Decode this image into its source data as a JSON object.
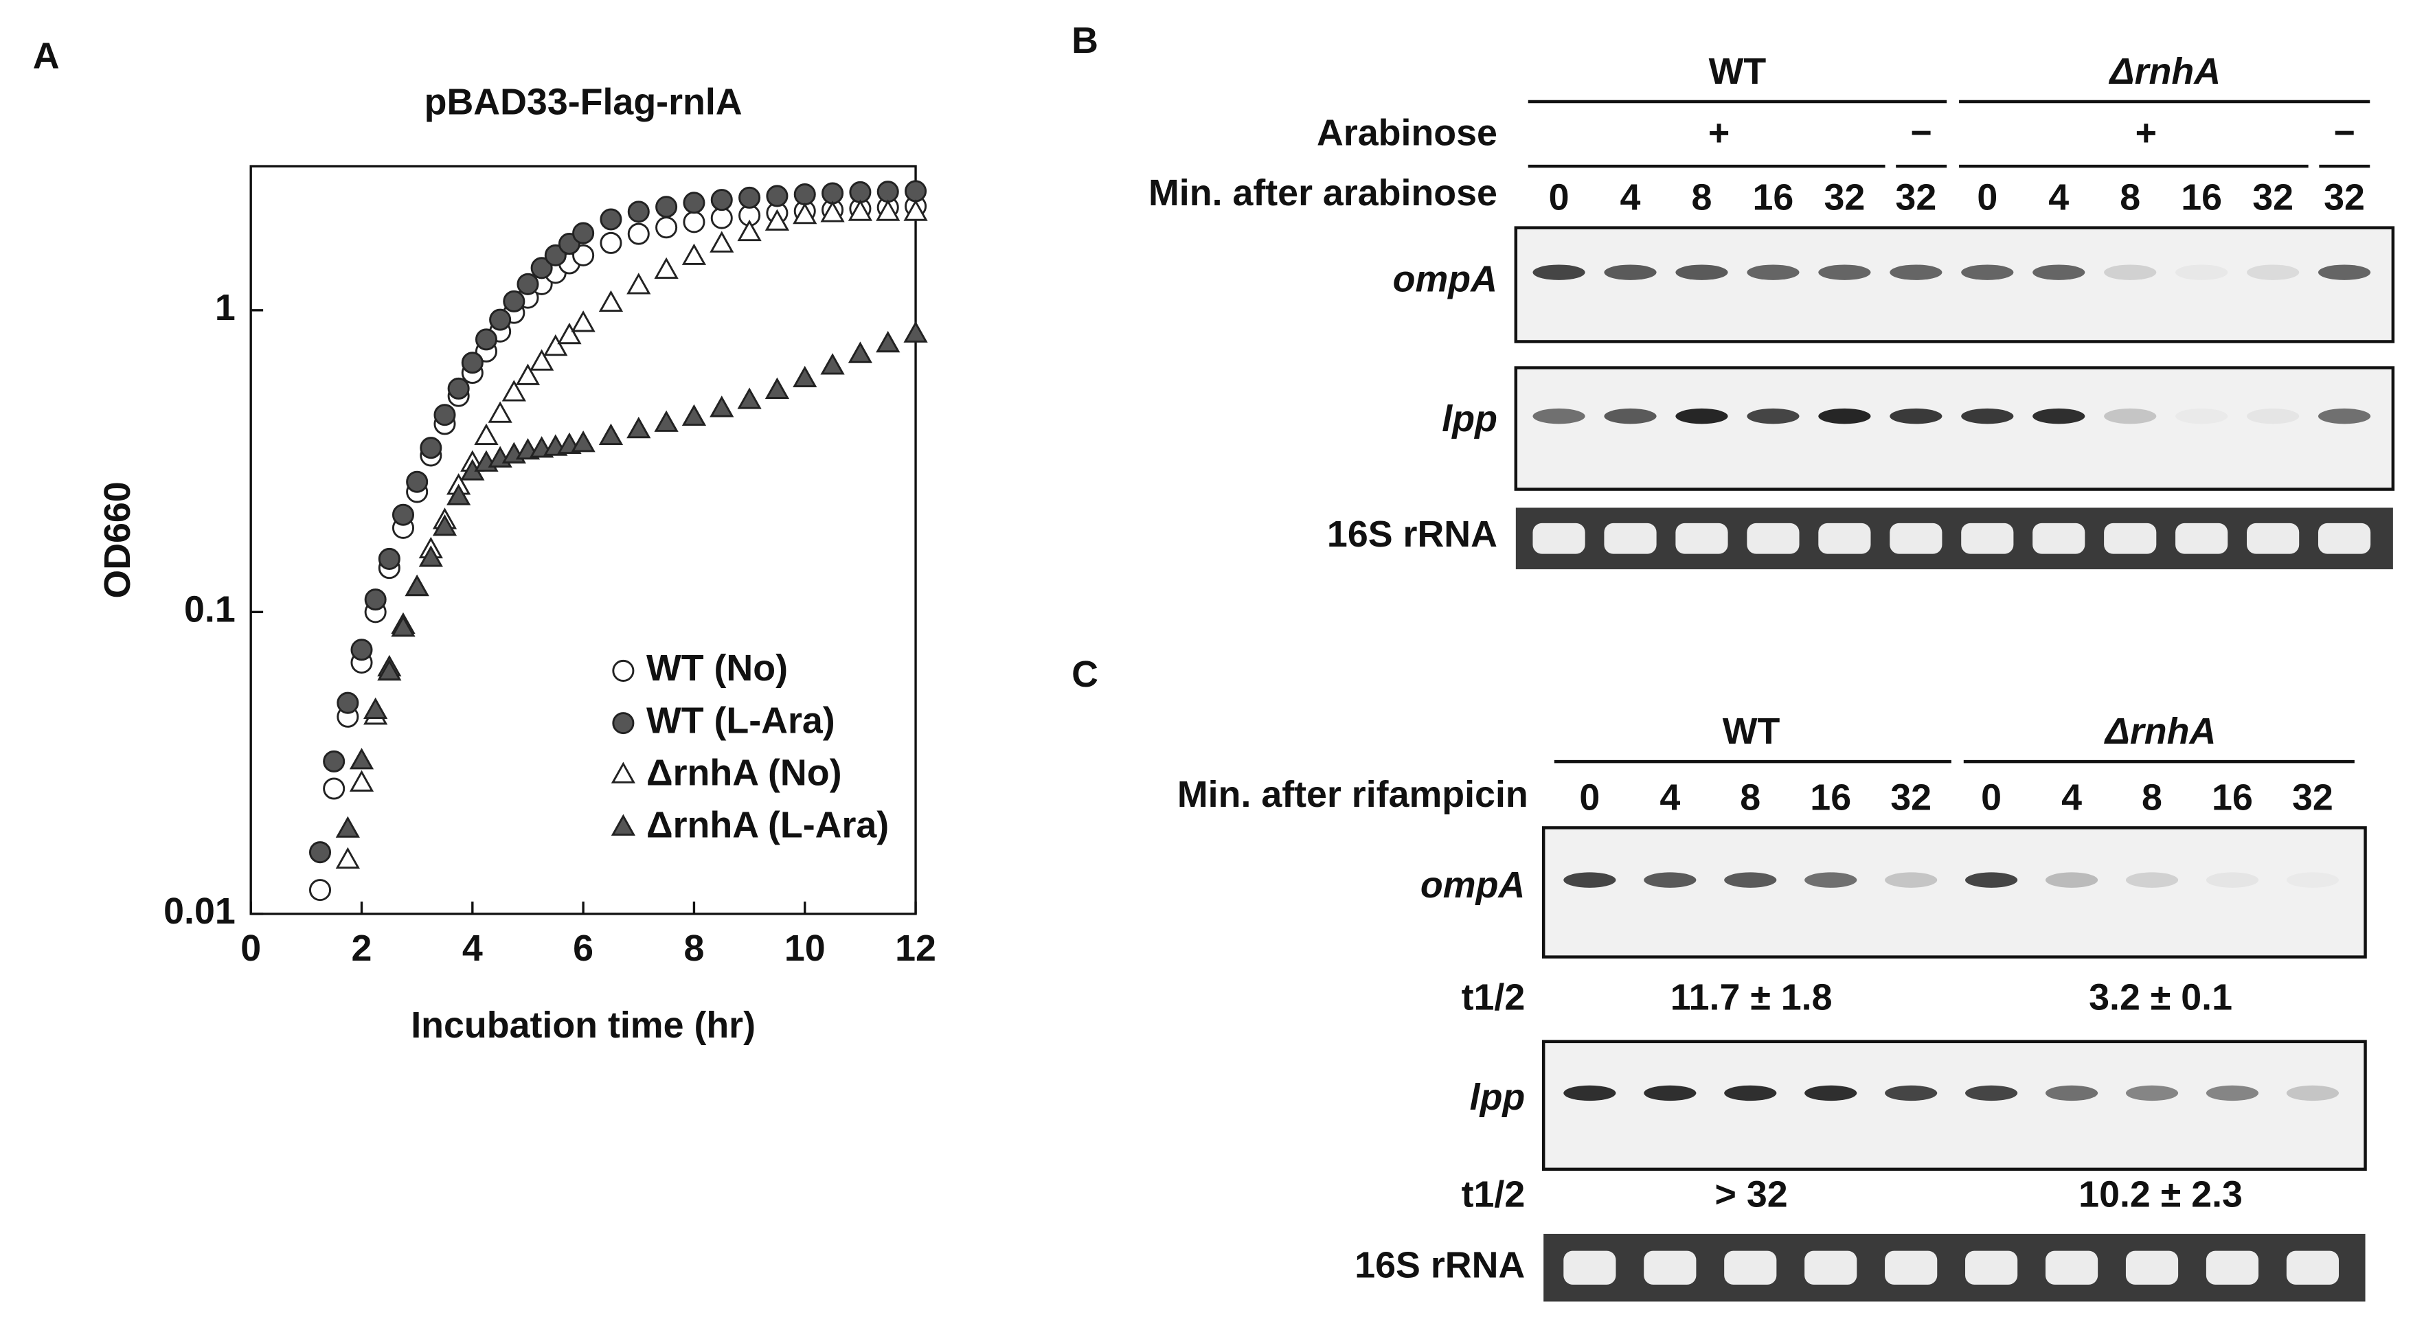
{
  "panel_labels": [
    "A",
    "B",
    "C"
  ],
  "chart_data": {
    "type": "scatter",
    "title": "pBAD33-Flag-rnlA",
    "xlabel": "Incubation time (hr)",
    "ylabel": "OD660",
    "xlim": [
      0,
      12
    ],
    "xticks": [
      0,
      2,
      4,
      6,
      8,
      10,
      12
    ],
    "ylim": [
      0.01,
      3
    ],
    "yticks": [
      0.01,
      0.1,
      1
    ],
    "yscale": "log",
    "grid": false,
    "legend": "lower right",
    "series": [
      {
        "name": "WT (No)",
        "marker": "circle",
        "filled": false,
        "color": "#333333",
        "x": [
          1.25,
          1.5,
          1.75,
          2,
          2.25,
          2.5,
          2.75,
          3,
          3.25,
          3.5,
          3.75,
          4,
          4.25,
          4.5,
          4.75,
          5,
          5.25,
          5.5,
          5.75,
          6,
          6.5,
          7,
          7.5,
          8,
          8.5,
          9,
          9.5,
          10,
          10.5,
          11,
          11.5,
          12
        ],
        "values": [
          0.012,
          0.026,
          0.045,
          0.068,
          0.1,
          0.14,
          0.19,
          0.25,
          0.33,
          0.42,
          0.52,
          0.62,
          0.73,
          0.85,
          0.98,
          1.1,
          1.22,
          1.33,
          1.43,
          1.52,
          1.67,
          1.79,
          1.88,
          1.96,
          2.02,
          2.06,
          2.1,
          2.13,
          2.15,
          2.17,
          2.19,
          2.21
        ]
      },
      {
        "name": "WT (L-Ara)",
        "marker": "circle",
        "filled": true,
        "color": "#555555",
        "x": [
          1.25,
          1.5,
          1.75,
          2,
          2.25,
          2.5,
          2.75,
          3,
          3.25,
          3.5,
          3.75,
          4,
          4.25,
          4.5,
          4.75,
          5,
          5.25,
          5.5,
          5.75,
          6,
          6.5,
          7,
          7.5,
          8,
          8.5,
          9,
          9.5,
          10,
          10.5,
          11,
          11.5,
          12
        ],
        "values": [
          0.016,
          0.032,
          0.05,
          0.075,
          0.11,
          0.15,
          0.21,
          0.27,
          0.35,
          0.45,
          0.55,
          0.67,
          0.8,
          0.93,
          1.07,
          1.22,
          1.38,
          1.52,
          1.66,
          1.8,
          2.0,
          2.12,
          2.2,
          2.27,
          2.32,
          2.36,
          2.39,
          2.42,
          2.44,
          2.46,
          2.47,
          2.48
        ]
      },
      {
        "name": "ΔrnhA (No)",
        "marker": "triangle",
        "filled": false,
        "color": "#333333",
        "x": [
          1.75,
          2,
          2.25,
          2.5,
          2.75,
          3,
          3.25,
          3.5,
          3.75,
          4,
          4.25,
          4.5,
          4.75,
          5,
          5.25,
          5.5,
          5.75,
          6,
          6.5,
          7,
          7.5,
          8,
          8.5,
          9,
          9.5,
          10,
          10.5,
          11,
          11.5,
          12
        ],
        "values": [
          0.015,
          0.027,
          0.045,
          0.065,
          0.09,
          0.12,
          0.16,
          0.2,
          0.26,
          0.31,
          0.38,
          0.45,
          0.53,
          0.6,
          0.67,
          0.75,
          0.82,
          0.9,
          1.05,
          1.2,
          1.35,
          1.5,
          1.65,
          1.8,
          1.95,
          2.05,
          2.08,
          2.1,
          2.1,
          2.1
        ]
      },
      {
        "name": "ΔrnhA (L-Ara)",
        "marker": "triangle",
        "filled": true,
        "color": "#555555",
        "x": [
          1.75,
          2,
          2.25,
          2.5,
          2.75,
          3,
          3.25,
          3.5,
          3.75,
          4,
          4.25,
          4.5,
          4.75,
          5,
          5.25,
          5.5,
          5.75,
          6,
          6.5,
          7,
          7.5,
          8,
          8.5,
          9,
          9.5,
          10,
          10.5,
          11,
          11.5,
          12
        ],
        "values": [
          0.019,
          0.032,
          0.047,
          0.063,
          0.088,
          0.12,
          0.15,
          0.19,
          0.24,
          0.29,
          0.31,
          0.32,
          0.33,
          0.34,
          0.345,
          0.35,
          0.355,
          0.36,
          0.38,
          0.4,
          0.42,
          0.44,
          0.47,
          0.5,
          0.54,
          0.59,
          0.65,
          0.71,
          0.77,
          0.83
        ]
      }
    ]
  },
  "panel_b": {
    "groups": [
      "WT",
      "ΔrnhA"
    ],
    "arabinose_label": "Arabinose",
    "arabinose": [
      "+",
      "−",
      "+",
      "−"
    ],
    "time_label": "Min. after arabinose",
    "lanes": [
      0,
      4,
      8,
      16,
      32,
      32,
      0,
      4,
      8,
      16,
      32,
      32
    ],
    "rows": [
      "ompA",
      "lpp",
      "16S rRNA"
    ]
  },
  "panel_c": {
    "groups": [
      "WT",
      "ΔrnhA"
    ],
    "time_label": "Min. after rifampicin",
    "lanes": [
      0,
      4,
      8,
      16,
      32,
      0,
      4,
      8,
      16,
      32
    ],
    "rows": [
      "ompA",
      "lpp",
      "16S rRNA"
    ],
    "half_life_label": "t1/2",
    "half_lives": [
      [
        "11.7 ± 1.8",
        "3.2 ± 0.1"
      ],
      [
        "> 32",
        "10.2 ± 2.3"
      ]
    ]
  }
}
